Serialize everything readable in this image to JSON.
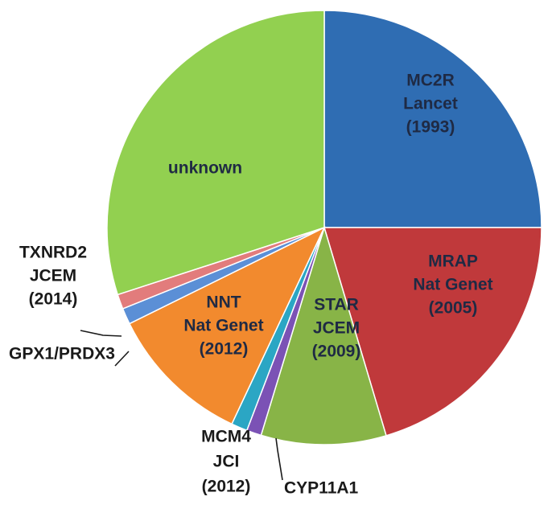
{
  "chart_data": {
    "type": "pie",
    "title": "",
    "series": [
      {
        "label": "MC2R\nLancet\n(1993)",
        "value": 25.0,
        "color": "#2f6db3"
      },
      {
        "label": "MRAP\nNat Genet\n(2005)",
        "value": 20.4,
        "color": "#c0393b"
      },
      {
        "label": "STAR\nJCEM\n(2009)",
        "value": 9.3,
        "color": "#88b447"
      },
      {
        "label": "CYP11A1",
        "value": 1.1,
        "color": "#7b52b5"
      },
      {
        "label": "MCM4\nJCI\n(2012)",
        "value": 1.2,
        "color": "#2ba6c4"
      },
      {
        "label": "NNT\nNat Genet\n(2012)",
        "value": 10.7,
        "color": "#f28a2e"
      },
      {
        "label": "GPX1/PRDX3",
        "value": 1.2,
        "color": "#5b8fd6"
      },
      {
        "label": "TXNRD2\nJCEM\n(2014)",
        "value": 1.1,
        "color": "#e27c7c"
      },
      {
        "label": "unknown",
        "value": 30.0,
        "color": "#92d050"
      }
    ]
  }
}
